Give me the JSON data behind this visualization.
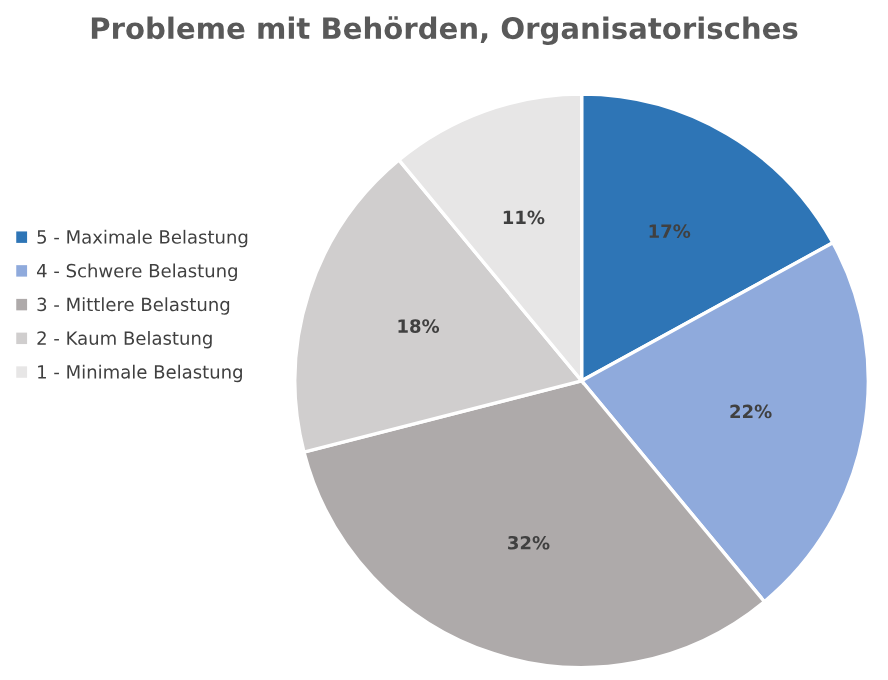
{
  "chart_data": {
    "type": "pie",
    "title": "Probleme mit Behörden, Organisatorisches",
    "categories": [
      "5 - Maximale Belastung",
      "4 - Schwere Belastung",
      "3 - Mittlere Belastung",
      "2 - Kaum Belastung",
      "1 - Minimale Belastung"
    ],
    "values": [
      17,
      22,
      32,
      18,
      11
    ],
    "colors": [
      "#2e75b6",
      "#8faadc",
      "#aeaaaa",
      "#d0cece",
      "#e7e6e6"
    ],
    "value_labels": [
      "17%",
      "22%",
      "32%",
      "18%",
      "11%"
    ],
    "legend": "left"
  }
}
